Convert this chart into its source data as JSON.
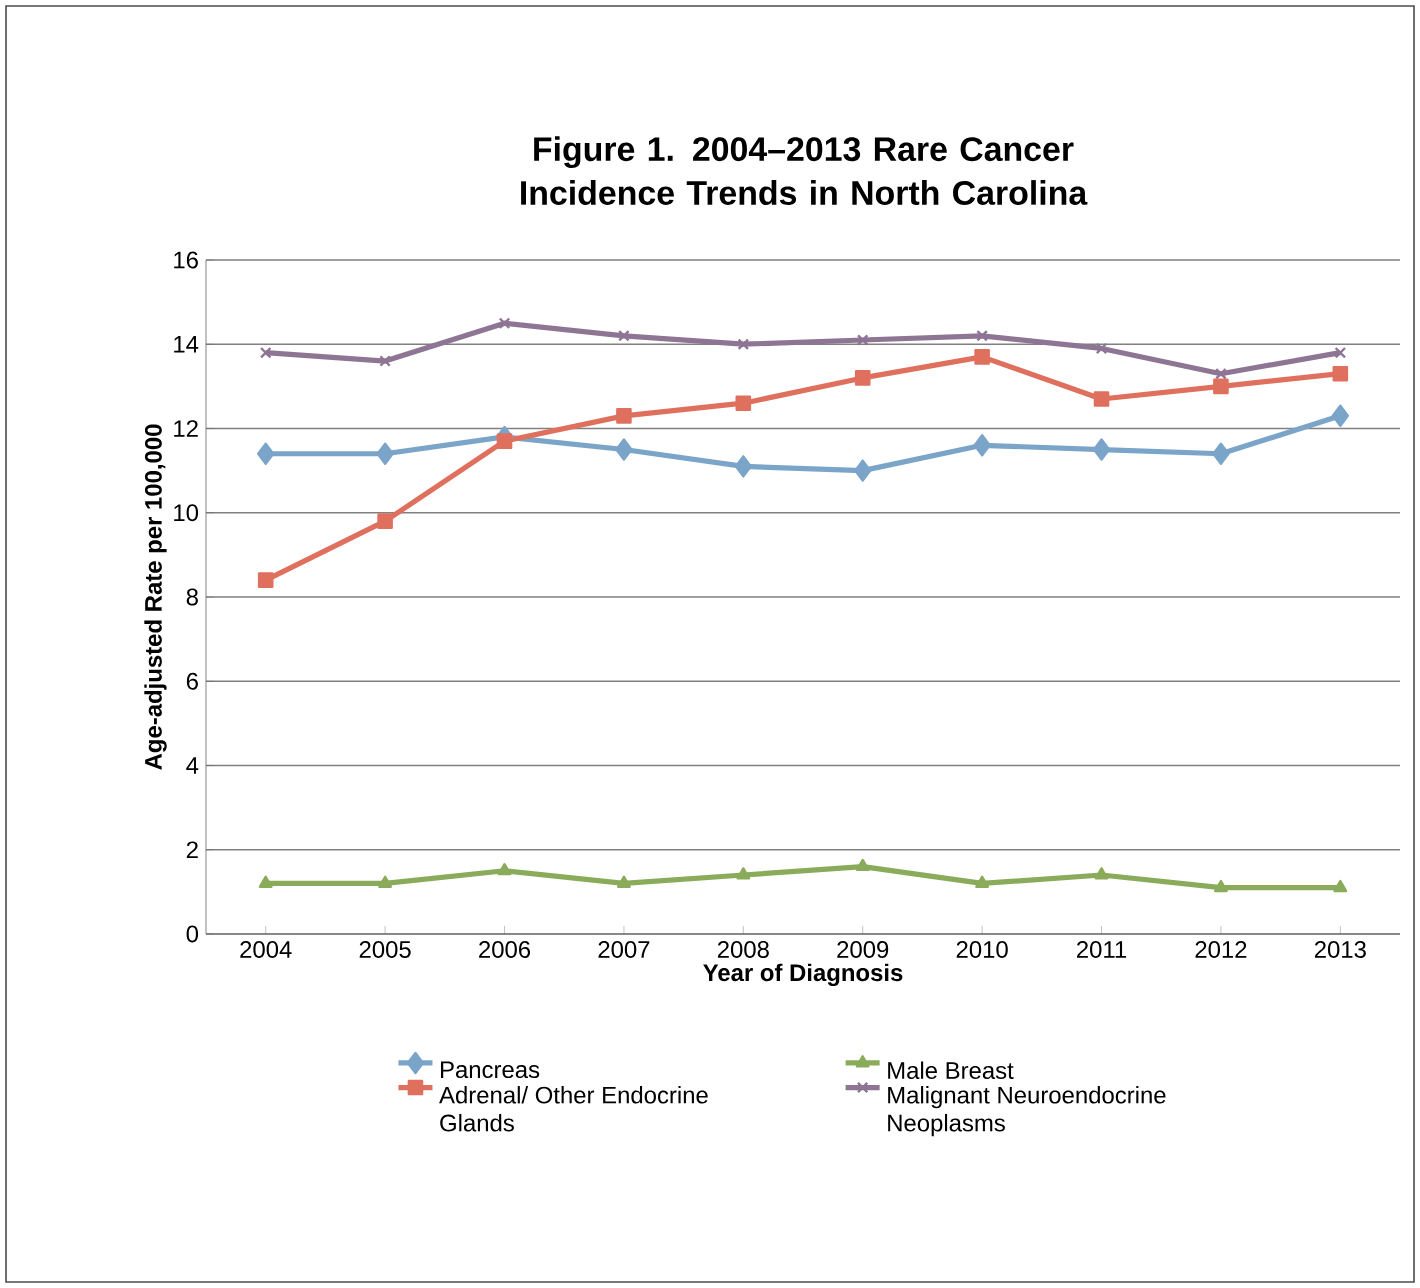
{
  "chart_data": {
    "type": "line",
    "title": "Figure 1.  2004–2013 Rare Cancer Incidence Trends in North Carolina",
    "xlabel": "Year of Diagnosis",
    "ylabel": "Age-adjusted Rate per 100,000",
    "categories": [
      "2004",
      "2005",
      "2006",
      "2007",
      "2008",
      "2009",
      "2010",
      "2011",
      "2012",
      "2013"
    ],
    "series": [
      {
        "name": "Pancreas",
        "color": "#7ba4c9",
        "marker": "diamond",
        "values": [
          11.4,
          11.4,
          11.8,
          11.5,
          11.1,
          11.0,
          11.6,
          11.5,
          11.4,
          12.3
        ]
      },
      {
        "name": "Adrenal/ Other Endocrine Glands",
        "color": "#e0705e",
        "marker": "square",
        "values": [
          8.4,
          9.8,
          11.7,
          12.3,
          12.6,
          13.2,
          13.7,
          12.7,
          13.0,
          13.3
        ]
      },
      {
        "name": "Male Breast",
        "color": "#8aab5a",
        "marker": "triangle",
        "values": [
          1.2,
          1.2,
          1.5,
          1.2,
          1.4,
          1.6,
          1.2,
          1.4,
          1.1,
          1.1
        ]
      },
      {
        "name": "Malignant Neuroendocrine Neoplasms",
        "color": "#8e7594",
        "marker": "cross",
        "values": [
          13.8,
          13.6,
          14.5,
          14.2,
          14.0,
          14.1,
          14.2,
          13.9,
          13.3,
          13.8
        ]
      }
    ],
    "ylim": [
      0,
      16
    ],
    "yticks": [
      0,
      2,
      4,
      6,
      8,
      10,
      12,
      14,
      16
    ],
    "grid": "y",
    "legend": "bottom",
    "line_style": "solid"
  }
}
